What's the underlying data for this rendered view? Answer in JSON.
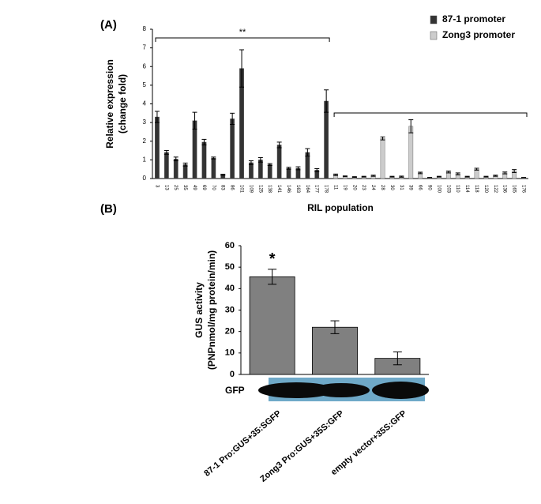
{
  "chart_data": [
    {
      "type": "bar",
      "panel": "(A)",
      "ylabel": [
        "Relative expression",
        "(change fold)"
      ],
      "xlabel": "RIL population",
      "annotation": "**",
      "categories": [
        "3",
        "13",
        "25",
        "35",
        "49",
        "69",
        "70",
        "83",
        "86",
        "101",
        "109",
        "125",
        "138",
        "141",
        "146",
        "163",
        "164",
        "177",
        "178",
        "11",
        "19",
        "20",
        "23",
        "24",
        "28",
        "30",
        "31",
        "39",
        "66",
        "90",
        "100",
        "103",
        "110",
        "114",
        "118",
        "120",
        "122",
        "136",
        "165",
        "176"
      ],
      "series": [
        {
          "name": "87-1 promoter",
          "color": "#333333",
          "values": [
            3.3,
            1.4,
            1.05,
            0.75,
            3.1,
            1.95,
            1.1,
            0.2,
            3.2,
            5.9,
            0.85,
            1.0,
            0.75,
            1.8,
            0.55,
            0.55,
            1.4,
            0.45,
            4.15,
            null,
            null,
            null,
            null,
            null,
            null,
            null,
            null,
            null,
            null,
            null,
            null,
            null,
            null,
            null,
            null,
            null,
            null,
            null,
            null,
            null
          ],
          "errors": [
            0.3,
            0.1,
            0.1,
            0.08,
            0.45,
            0.15,
            0.05,
            0.03,
            0.3,
            1.0,
            0.1,
            0.12,
            0.05,
            0.15,
            0.05,
            0.08,
            0.2,
            0.08,
            0.6,
            null,
            null,
            null,
            null,
            null,
            null,
            null,
            null,
            null,
            null,
            null,
            null,
            null,
            null,
            null,
            null,
            null,
            null,
            null,
            null,
            null
          ]
        },
        {
          "name": "Zong3 promoter",
          "color": "#cccccc",
          "values": [
            null,
            null,
            null,
            null,
            null,
            null,
            null,
            null,
            null,
            null,
            null,
            null,
            null,
            null,
            null,
            null,
            null,
            null,
            null,
            0.2,
            0.12,
            0.08,
            0.1,
            0.15,
            2.15,
            0.1,
            0.1,
            2.8,
            0.3,
            0.05,
            0.1,
            0.35,
            0.25,
            0.1,
            0.5,
            0.1,
            0.15,
            0.3,
            0.4,
            0.05
          ],
          "errors": [
            null,
            null,
            null,
            null,
            null,
            null,
            null,
            null,
            null,
            null,
            null,
            null,
            null,
            null,
            null,
            null,
            null,
            null,
            null,
            0.04,
            0.02,
            0.02,
            0.02,
            0.03,
            0.08,
            0.02,
            0.03,
            0.35,
            0.04,
            0.01,
            0.02,
            0.05,
            0.05,
            0.02,
            0.05,
            0.02,
            0.03,
            0.05,
            0.08,
            0.01
          ]
        }
      ],
      "ylim": [
        0,
        8
      ],
      "yticks": [
        0,
        1,
        2,
        3,
        4,
        5,
        6,
        7,
        8
      ]
    },
    {
      "type": "bar",
      "panel": "(B)",
      "ylabel": [
        "GUS activity",
        "(PNPnmol/mg protein/min)"
      ],
      "annotation": "*",
      "band_label": "GFP",
      "categories": [
        "87-1 Pro:GUS+35:SGFP",
        "Zong3 Pro:GUS+35S:GFP",
        "empty vector+35S:GFP"
      ],
      "series": [
        {
          "color": "#808080",
          "values": [
            45.5,
            22,
            7.5
          ],
          "errors": [
            3.5,
            3,
            3
          ]
        }
      ],
      "ylim": [
        0,
        60
      ],
      "yticks": [
        0,
        10,
        20,
        30,
        40,
        50,
        60
      ]
    }
  ]
}
